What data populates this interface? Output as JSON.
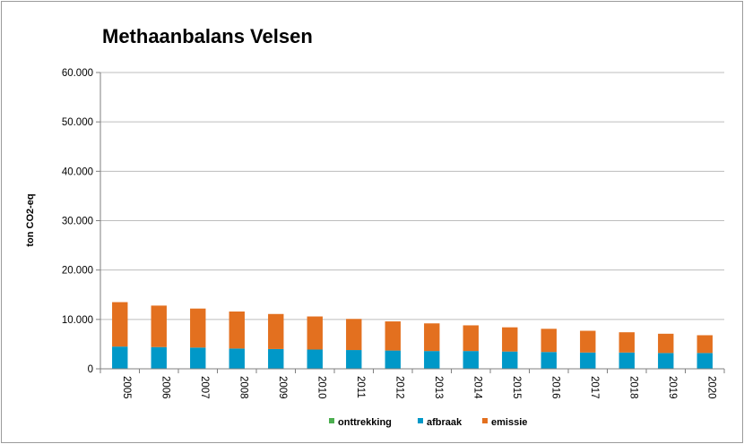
{
  "chart_data": {
    "type": "bar",
    "stacked": true,
    "title": "Methaanbalans Velsen",
    "ylabel": "ton CO2-eq",
    "xlabel": "",
    "ylim": [
      0,
      60000
    ],
    "yticks": [
      "0",
      "10.000",
      "20.000",
      "30.000",
      "40.000",
      "50.000",
      "60.000"
    ],
    "ytick_values": [
      0,
      10000,
      20000,
      30000,
      40000,
      50000,
      60000
    ],
    "grid": true,
    "legend_position": "bottom",
    "categories": [
      "2005",
      "2006",
      "2007",
      "2008",
      "2009",
      "2010",
      "2011",
      "2012",
      "2013",
      "2014",
      "2015",
      "2016",
      "2017",
      "2018",
      "2019",
      "2020"
    ],
    "series": [
      {
        "name": "onttrekking",
        "color": "#4caf50",
        "values": [
          0,
          0,
          0,
          0,
          0,
          0,
          0,
          0,
          0,
          0,
          0,
          0,
          0,
          0,
          0,
          0
        ]
      },
      {
        "name": "afbraak",
        "color": "#0098c8",
        "values": [
          4500,
          4400,
          4300,
          4100,
          4000,
          3900,
          3800,
          3700,
          3600,
          3600,
          3500,
          3400,
          3300,
          3300,
          3200,
          3200
        ]
      },
      {
        "name": "emissie",
        "color": "#e3701f",
        "values": [
          9000,
          8400,
          7900,
          7500,
          7100,
          6700,
          6300,
          5900,
          5600,
          5200,
          4900,
          4700,
          4400,
          4100,
          3900,
          3600
        ]
      }
    ]
  }
}
